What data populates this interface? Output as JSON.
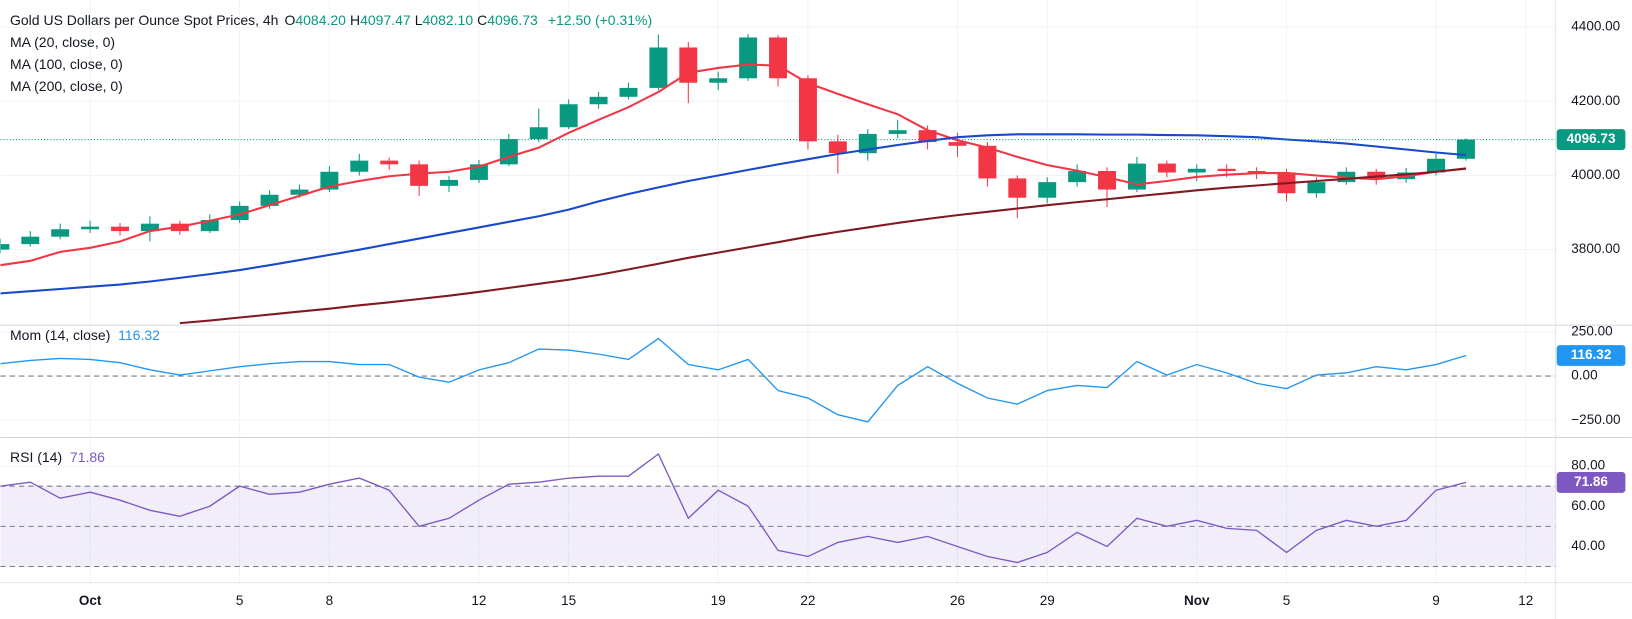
{
  "header": {
    "title": "Gold US Dollars per Ounce Spot Prices, 4h",
    "ohlc": [
      {
        "label": "O",
        "value": "4084.20"
      },
      {
        "label": "H",
        "value": "4097.47"
      },
      {
        "label": "L",
        "value": "4082.10"
      },
      {
        "label": "C",
        "value": "4096.73"
      }
    ],
    "change": "+12.50 (+0.31%)"
  },
  "chart_data": [
    {
      "type": "candlestick",
      "categories": [
        null,
        null,
        null,
        "Oct",
        null,
        null,
        null,
        null,
        "5",
        null,
        null,
        "8",
        null,
        null,
        null,
        null,
        "12",
        null,
        null,
        "15",
        null,
        null,
        null,
        null,
        "19",
        null,
        null,
        "22",
        null,
        null,
        null,
        null,
        "26",
        null,
        null,
        "29",
        null,
        null,
        null,
        null,
        "Nov",
        null,
        null,
        "5",
        null,
        null,
        null,
        null,
        "9",
        null,
        null,
        "12"
      ],
      "open": [
        3800,
        3815,
        3835,
        3855,
        3862,
        3850,
        3870,
        3850,
        3880,
        3918,
        3948,
        3962,
        4010,
        4040,
        4030,
        3972,
        3988,
        4030,
        4098,
        4130,
        4192,
        4212,
        4236,
        4345,
        4250,
        4262,
        4372,
        4262,
        4092,
        4060,
        4112,
        4122,
        4090,
        4080,
        3992,
        3940,
        3982,
        4012,
        3962,
        4032,
        4008,
        4018,
        4012,
        4008,
        3952,
        3982,
        4010,
        3990,
        4008,
        4045,
        null,
        null
      ],
      "high": [
        3830,
        3850,
        3870,
        3878,
        3872,
        3890,
        3878,
        3895,
        3930,
        3960,
        3975,
        4025,
        4058,
        4048,
        4040,
        3998,
        4042,
        4112,
        4180,
        4205,
        4225,
        4250,
        4380,
        4360,
        4280,
        4381,
        4378,
        4270,
        4110,
        4125,
        4150,
        4135,
        4115,
        4090,
        4000,
        3995,
        4030,
        4022,
        4050,
        4040,
        4030,
        4030,
        4022,
        4018,
        3995,
        4022,
        4018,
        4020,
        4058,
        4100,
        null,
        null
      ],
      "low": [
        3790,
        3808,
        3828,
        3845,
        3838,
        3822,
        3840,
        3845,
        3872,
        3910,
        3940,
        3955,
        4000,
        4015,
        3945,
        3955,
        3980,
        4025,
        4090,
        4125,
        4180,
        4205,
        4230,
        4195,
        4230,
        4255,
        4240,
        4070,
        4005,
        4040,
        4100,
        4070,
        4050,
        3970,
        3885,
        3925,
        3970,
        3915,
        3955,
        3995,
        3985,
        3995,
        3990,
        3930,
        3940,
        3975,
        3975,
        3980,
        4000,
        4040,
        null,
        null
      ],
      "close": [
        3815,
        3835,
        3855,
        3862,
        3850,
        3870,
        3850,
        3880,
        3918,
        3948,
        3962,
        4010,
        4040,
        4030,
        3972,
        3988,
        4030,
        4098,
        4130,
        4192,
        4212,
        4236,
        4345,
        4250,
        4262,
        4372,
        4262,
        4092,
        4060,
        4112,
        4122,
        4090,
        4080,
        3992,
        3940,
        3982,
        4012,
        3962,
        4032,
        4008,
        4018,
        4012,
        4008,
        3952,
        3982,
        4010,
        3990,
        4008,
        4045,
        4096.73,
        null,
        null
      ],
      "up_color": "#089981",
      "down_color": "#f23645",
      "series": [
        {
          "name": "MA (20, close, 0)",
          "color": "#f23645",
          "values": [
            3758,
            3770,
            3794,
            3805,
            3822,
            3850,
            3862,
            3878,
            3895,
            3920,
            3945,
            3970,
            3985,
            3998,
            4005,
            4010,
            4024,
            4050,
            4075,
            4115,
            4150,
            4184,
            4225,
            4277,
            4290,
            4299,
            4296,
            4249,
            4220,
            4192,
            4165,
            4122,
            4095,
            4075,
            4050,
            4028,
            4013,
            3995,
            3976,
            3985,
            3996,
            4002,
            4006,
            4007,
            4000,
            3994,
            3990,
            3998,
            4010,
            4018,
            null,
            null
          ]
        },
        {
          "name": "MA (100, close, 0)",
          "color": "#1848cc",
          "values": [
            3682,
            3688,
            3694,
            3700,
            3706,
            3714,
            3724,
            3734,
            3745,
            3758,
            3772,
            3786,
            3800,
            3815,
            3830,
            3845,
            3860,
            3875,
            3890,
            3908,
            3930,
            3950,
            3968,
            3985,
            4000,
            4015,
            4030,
            4044,
            4058,
            4070,
            4082,
            4093,
            4103,
            4108,
            4111,
            4111,
            4111,
            4110,
            4110,
            4109,
            4108,
            4106,
            4103,
            4097,
            4092,
            4086,
            4078,
            4070,
            4062,
            4055,
            null,
            null
          ]
        },
        {
          "name": "MA (200, close, 0)",
          "color": "#801922",
          "values": [
            null,
            null,
            null,
            null,
            null,
            null,
            3602,
            3609,
            3617,
            3625,
            3633,
            3641,
            3650,
            3658,
            3667,
            3676,
            3686,
            3697,
            3708,
            3719,
            3732,
            3747,
            3762,
            3778,
            3792,
            3806,
            3820,
            3835,
            3848,
            3860,
            3872,
            3883,
            3893,
            3902,
            3911,
            3920,
            3928,
            3936,
            3944,
            3952,
            3960,
            3967,
            3973,
            3979,
            3985,
            3991,
            3997,
            4003,
            4010,
            4019,
            null,
            null
          ]
        }
      ],
      "ylim": [
        3598,
        4473
      ],
      "yticks": [
        {
          "value": 3800,
          "label": "3800.00"
        },
        {
          "value": 4000,
          "label": "4000.00"
        },
        {
          "value": 4200,
          "label": "4200.00"
        },
        {
          "value": 4400,
          "label": "4400.00"
        }
      ],
      "grid": true,
      "last_label": "4096.73",
      "last_color": "#089981"
    },
    {
      "type": "line",
      "series": [
        {
          "name": "Mom (14, close)",
          "color": "#2196f3",
          "values": [
            70,
            88,
            100,
            94,
            76,
            35,
            6,
            29,
            53,
            70,
            82,
            82,
            65,
            65,
            -6,
            -35,
            35,
            76,
            153,
            147,
            124,
            94,
            212,
            65,
            35,
            94,
            -82,
            -124,
            -218,
            -259,
            -53,
            53,
            -41,
            -124,
            -159,
            -82,
            -53,
            -65,
            82,
            6,
            65,
            18,
            -41,
            -71,
            6,
            18,
            53,
            35,
            65,
            116.32,
            null,
            null
          ]
        }
      ],
      "ylim": [
        -344,
        285
      ],
      "yticks": [
        {
          "value": -250,
          "label": "−250.00"
        },
        {
          "value": 0,
          "label": "0.00"
        },
        {
          "value": 250,
          "label": "250.00"
        }
      ],
      "hlines": [
        0
      ],
      "grid": true,
      "last_label": "116.32"
    },
    {
      "type": "line",
      "series": [
        {
          "name": "RSI (14)",
          "color": "#7e57c2",
          "values": [
            70,
            72,
            64,
            67,
            63,
            58,
            55,
            60,
            70,
            66,
            67,
            71,
            74,
            68,
            50,
            54,
            63,
            71,
            72,
            74,
            75,
            75,
            86,
            54,
            68,
            60,
            38,
            35,
            42,
            45,
            42,
            45,
            40,
            35,
            32,
            37,
            47,
            40,
            54,
            50,
            53,
            49,
            48,
            37,
            48,
            53,
            50,
            53,
            68,
            71.86,
            null,
            null
          ]
        }
      ],
      "ylim": [
        22,
        94
      ],
      "yticks": [
        {
          "value": 40,
          "label": "40.00"
        },
        {
          "value": 60,
          "label": "60.00"
        },
        {
          "value": 80,
          "label": "80.00"
        }
      ],
      "hlines": [
        30,
        50,
        70
      ],
      "band": [
        30,
        70
      ],
      "grid": true,
      "last_label": "71.86"
    }
  ]
}
